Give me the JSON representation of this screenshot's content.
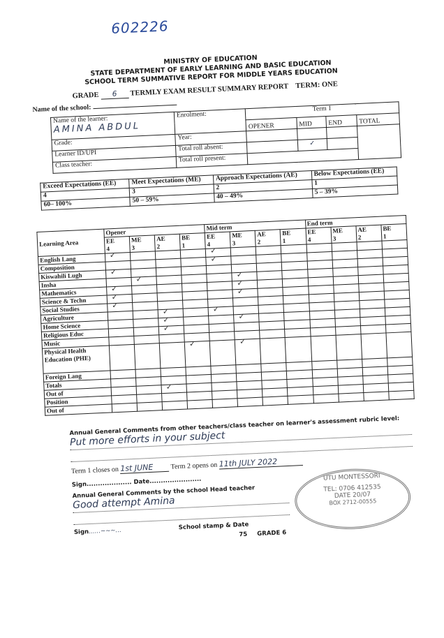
{
  "reference_number": "602226",
  "header": {
    "line1": "MINISTRY OF EDUCATION",
    "line2": "STATE DEPARTMENT OF EARLY LEARNING AND BASIC EDUCATION",
    "line3": "SCHOOL TERM SUMMATIVE REPORT FOR MIDDLE YEARS EDUCATION",
    "grade_label": "GRADE",
    "grade_value": "6",
    "report_title": "TERMLY EXAM RESULT SUMMARY REPORT",
    "term": "TERM: ONE"
  },
  "school_label": "Name of the school:",
  "learner": {
    "name_label": "Name of the learner:",
    "name_value": "AMINA ABDUL",
    "grade_label": "Grade:",
    "id_label": "Learner ID/UPI",
    "teacher_label": "Class teacher:",
    "enrolment_label": "Enrolment:",
    "year_label": "Year:",
    "absent_label": "Total roll absent:",
    "present_label": "Total roll present:"
  },
  "term_box": {
    "title": "Term 1",
    "columns": [
      "OPENER",
      "MID",
      "END",
      "TOTAL"
    ],
    "mid_tick": "✓"
  },
  "levels": [
    {
      "name": "Exceed Expectations (EE)",
      "score": "4",
      "range": "60– 100%"
    },
    {
      "name": "Meet Expectations (ME)",
      "score": "3",
      "range": "50 – 59%"
    },
    {
      "name": "Approach Expectations (AE)",
      "score": "2",
      "range": "40 – 49%"
    },
    {
      "name": "Below Expectations (EE)",
      "score": "1",
      "range": "5 – 39%"
    }
  ],
  "results": {
    "area_header": "Learning Area",
    "periods": [
      "Opener",
      "Mid term",
      "End term"
    ],
    "sub_columns": [
      [
        "EE",
        "4"
      ],
      [
        "ME",
        "3"
      ],
      [
        "AE",
        "2"
      ],
      [
        "BE",
        "1"
      ]
    ],
    "rows": [
      {
        "area": "English Lang",
        "marks": [
          0,
          4
        ]
      },
      {
        "area": "Composition",
        "marks": [
          4
        ]
      },
      {
        "area": "Kiswahili Lugh",
        "marks": [
          0
        ]
      },
      {
        "area": "Insha",
        "marks": [
          1,
          5
        ]
      },
      {
        "area": "Mathematics",
        "marks": [
          0,
          5
        ]
      },
      {
        "area": "Science & Techn",
        "marks": [
          0,
          5
        ]
      },
      {
        "area": "Social Studies",
        "marks": [
          0
        ]
      },
      {
        "area": "Agriculture",
        "marks": [
          2,
          4
        ]
      },
      {
        "area": "Home Science",
        "marks": [
          2,
          5
        ]
      },
      {
        "area": "Religious Educ",
        "marks": [
          2
        ]
      },
      {
        "area": "Music",
        "marks": []
      },
      {
        "area": "Physical Health Education (PHE)",
        "marks": [
          3,
          5
        ]
      },
      {
        "area": "Foreign Lang",
        "marks": []
      },
      {
        "area": "Totals",
        "marks": []
      },
      {
        "area": "Out of",
        "marks": [
          2
        ]
      },
      {
        "area": "Position",
        "marks": []
      },
      {
        "area": "Out of",
        "marks": []
      }
    ]
  },
  "comments": {
    "teachers_label": "Annual General Comments from other teachers/class teacher on learner's assessment rubric level:",
    "teachers_value": "Put more efforts in your subject",
    "closes_label": "Term 1 closes on",
    "closes_value": "1st JUNE",
    "opens_label": "Term 2 opens on",
    "opens_value": "11th JULY 2022",
    "sign_label": "Sign",
    "date_label": "Date",
    "head_label": "Annual General Comments by the school Head teacher",
    "head_value": "Good attempt Amina",
    "sign2_label": "Sign",
    "stamp_label": "School stamp & Date",
    "footer_page": "75",
    "footer_grade": "GRADE 6"
  },
  "stamp": {
    "name": "UTU MONTESSORI",
    "tel": "TEL: 0706 412535",
    "date": "DATE 20/07",
    "box": "BOX 2712-00555"
  }
}
